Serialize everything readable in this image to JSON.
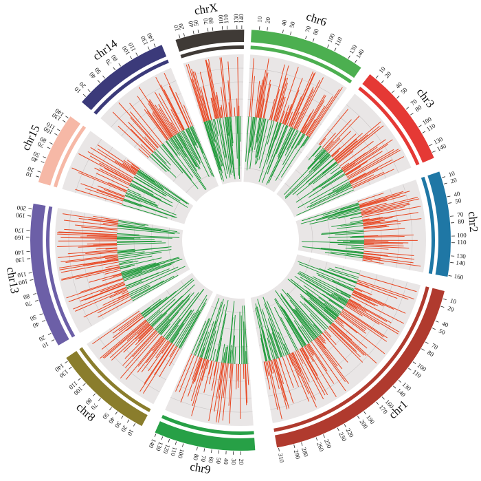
{
  "chart_data": {
    "type": "circos",
    "colors": {
      "track_background": "#e9e6e6",
      "track_grid": "#ffffff",
      "up_bars": "#e8441f",
      "down_bars": "#1f9a3a"
    },
    "chromosomes": [
      {
        "name": "chr6",
        "color": "#4caf50",
        "length": 150,
        "ticks": [
          10,
          20,
          40,
          50,
          70,
          80,
          100,
          110,
          130,
          140
        ]
      },
      {
        "name": "chr3",
        "color": "#e53935",
        "length": 148,
        "ticks": [
          10,
          20,
          40,
          50,
          70,
          80,
          100,
          110,
          130,
          140
        ]
      },
      {
        "name": "chr2",
        "color": "#1f77a5",
        "length": 162,
        "ticks": [
          10,
          20,
          40,
          50,
          70,
          80,
          100,
          110,
          130,
          140,
          160
        ]
      },
      {
        "name": "chr1",
        "color": "#b03a2e",
        "length": 312,
        "ticks": [
          10,
          20,
          40,
          50,
          70,
          80,
          100,
          110,
          130,
          140,
          160,
          170,
          190,
          200,
          220,
          230,
          250,
          260,
          280,
          290,
          310
        ]
      },
      {
        "name": "chr9",
        "color": "#27a046",
        "length": 142,
        "ticks": [
          20,
          30,
          40,
          50,
          60,
          70,
          80,
          100,
          110,
          120,
          130,
          140
        ]
      },
      {
        "name": "chr8",
        "color": "#8a7d2c",
        "length": 145,
        "ticks": [
          10,
          20,
          30,
          40,
          50,
          70,
          80,
          100,
          110,
          130,
          140
        ]
      },
      {
        "name": "chr13",
        "color": "#6c5fa7",
        "length": 208,
        "ticks": [
          10,
          20,
          40,
          50,
          70,
          80,
          100,
          110,
          130,
          140,
          160,
          170,
          190,
          200
        ]
      },
      {
        "name": "chr15",
        "color": "#f6b8a6",
        "length": 145,
        "ticks": [
          10,
          20,
          40,
          50,
          70,
          80,
          100,
          110,
          130,
          140
        ]
      },
      {
        "name": "chr14",
        "color": "#3b3a7a",
        "length": 150,
        "ticks": [
          10,
          20,
          40,
          50,
          70,
          80,
          100,
          110,
          130,
          140
        ]
      },
      {
        "name": "chrX",
        "color": "#3f3a36",
        "length": 145,
        "ticks": [
          10,
          20,
          40,
          50,
          70,
          80,
          100,
          110,
          130,
          140
        ]
      }
    ]
  }
}
